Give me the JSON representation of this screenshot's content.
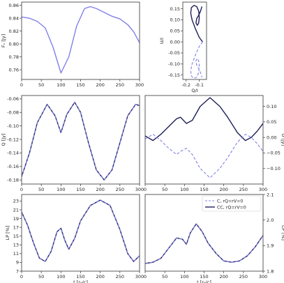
{
  "colors": {
    "light": "#8080ea",
    "dark": "#1e1e5a",
    "axis": "#333333"
  },
  "legend": {
    "entries": [
      {
        "label": "C, rQ=rV=0",
        "style": "dashed",
        "color": "#8080ea"
      },
      {
        "label": "CC, rQ=rV=0",
        "style": "solid",
        "color": "#1e1e5a"
      }
    ]
  },
  "chart_data": [
    {
      "id": "fv",
      "type": "line",
      "ylabel": "Fᵥ [Jy]",
      "xlim": [
        0,
        300
      ],
      "ylim": [
        0.745,
        0.865
      ],
      "xticks": [
        0,
        50,
        100,
        150,
        200,
        250,
        300
      ],
      "yticks": [
        0.76,
        0.78,
        0.8,
        0.82,
        0.84,
        0.86
      ],
      "ytick_labels": [
        "0.76",
        "0.78",
        "0.80",
        "0.82",
        "0.84",
        "0.86"
      ],
      "show_xtick_labels": true,
      "series": [
        {
          "style": "solid",
          "color": "#8080ea",
          "x": [
            0,
            20,
            40,
            60,
            80,
            100,
            120,
            140,
            160,
            175,
            190,
            210,
            230,
            250,
            270,
            285,
            300
          ],
          "y": [
            0.842,
            0.84,
            0.835,
            0.825,
            0.795,
            0.755,
            0.78,
            0.828,
            0.855,
            0.858,
            0.855,
            0.849,
            0.843,
            0.839,
            0.83,
            0.819,
            0.802
          ]
        }
      ]
    },
    {
      "id": "qu",
      "type": "line",
      "xlabel": "Q/I",
      "ylabel": "U/I",
      "xlim": [
        -0.225,
        -0.045
      ],
      "ylim": [
        -0.17,
        0.18
      ],
      "xticks": [
        -0.2,
        -0.1
      ],
      "xtick_labels": [
        "-0.2",
        "-0.1"
      ],
      "yticks": [
        -0.15,
        -0.1,
        -0.05,
        0.0,
        0.05,
        0.1,
        0.15
      ],
      "ytick_labels": [
        "-0.15",
        "-0.10",
        "-0.05",
        "0.00",
        "0.05",
        "0.10",
        "0.15"
      ],
      "show_xtick_labels": true,
      "series": [
        {
          "style": "solid",
          "color": "#1e1e5a",
          "x": [
            -0.075,
            -0.1,
            -0.13,
            -0.155,
            -0.165,
            -0.16,
            -0.14,
            -0.12,
            -0.105,
            -0.1,
            -0.105,
            -0.115,
            -0.125,
            -0.12,
            -0.105,
            -0.09,
            -0.08
          ],
          "y": [
            0.0,
            0.02,
            0.06,
            0.1,
            0.13,
            0.155,
            0.165,
            0.16,
            0.14,
            0.11,
            0.085,
            0.075,
            0.085,
            0.105,
            0.12,
            0.14,
            0.16
          ]
        },
        {
          "style": "dashed",
          "color": "#8080ea",
          "x": [
            -0.075,
            -0.1,
            -0.13,
            -0.155,
            -0.165,
            -0.16,
            -0.14,
            -0.12,
            -0.105,
            -0.1,
            -0.105,
            -0.115,
            -0.125,
            -0.12,
            -0.105,
            -0.09,
            -0.08
          ],
          "y": [
            0.0,
            -0.02,
            -0.06,
            -0.1,
            -0.13,
            -0.155,
            -0.165,
            -0.16,
            -0.14,
            -0.11,
            -0.085,
            -0.075,
            -0.085,
            -0.105,
            -0.12,
            -0.14,
            -0.16
          ]
        }
      ]
    },
    {
      "id": "q",
      "type": "line",
      "ylabel": "Q [Jy]",
      "xlim": [
        0,
        300
      ],
      "ylim": [
        -0.186,
        -0.055
      ],
      "xticks": [
        0,
        50,
        100,
        150,
        200,
        250,
        300
      ],
      "yticks": [
        -0.06,
        -0.08,
        -0.1,
        -0.12,
        -0.14,
        -0.16,
        -0.18
      ],
      "ytick_labels": [
        "-0.06",
        "-0.08",
        "-0.10",
        "-0.12",
        "-0.14",
        "-0.16",
        "-0.18"
      ],
      "show_xtick_labels": true,
      "series": [
        {
          "style": "solid",
          "color": "#1e1e5a",
          "x": [
            0,
            20,
            40,
            65,
            85,
            100,
            115,
            135,
            150,
            170,
            190,
            210,
            230,
            250,
            270,
            290,
            300
          ],
          "y": [
            -0.175,
            -0.14,
            -0.095,
            -0.068,
            -0.085,
            -0.11,
            -0.083,
            -0.065,
            -0.08,
            -0.125,
            -0.165,
            -0.18,
            -0.165,
            -0.125,
            -0.085,
            -0.068,
            -0.07
          ]
        },
        {
          "style": "dashed",
          "color": "#8080ea",
          "x": [
            0,
            20,
            40,
            65,
            85,
            100,
            115,
            135,
            150,
            170,
            190,
            210,
            230,
            250,
            270,
            290,
            300
          ],
          "y": [
            -0.175,
            -0.14,
            -0.095,
            -0.068,
            -0.085,
            -0.11,
            -0.083,
            -0.065,
            -0.08,
            -0.125,
            -0.165,
            -0.18,
            -0.165,
            -0.125,
            -0.085,
            -0.068,
            -0.07
          ]
        }
      ]
    },
    {
      "id": "u",
      "type": "line",
      "ylabel": "U [Jy]",
      "xlim": [
        0,
        300
      ],
      "ylim": [
        -0.15,
        0.135
      ],
      "xticks": [
        0,
        50,
        100,
        150,
        200,
        250,
        300
      ],
      "yticks": [
        0.1,
        0.05,
        0.0,
        -0.05,
        -0.1
      ],
      "ytick_labels": [
        "0.10",
        "0.05",
        "0.00",
        "−0.05",
        "−0.10"
      ],
      "y_axis_side": "right",
      "show_xtick_labels": true,
      "series": [
        {
          "style": "solid",
          "color": "#1e1e5a",
          "x": [
            0,
            20,
            40,
            60,
            80,
            90,
            105,
            120,
            140,
            165,
            190,
            210,
            235,
            255,
            270,
            285,
            300
          ],
          "y": [
            0.005,
            -0.01,
            0.01,
            0.035,
            0.06,
            0.065,
            0.045,
            0.055,
            0.1,
            0.128,
            0.1,
            0.065,
            0.015,
            -0.01,
            0.0,
            0.02,
            0.045
          ]
        },
        {
          "style": "dashed",
          "color": "#8080ea",
          "x": [
            0,
            20,
            40,
            60,
            80,
            90,
            105,
            120,
            140,
            165,
            190,
            210,
            235,
            255,
            270,
            285,
            300
          ],
          "y": [
            -0.005,
            0.01,
            -0.01,
            -0.035,
            -0.055,
            -0.045,
            -0.035,
            -0.055,
            -0.1,
            -0.13,
            -0.1,
            -0.065,
            -0.015,
            0.01,
            0.0,
            -0.02,
            -0.045
          ]
        }
      ]
    },
    {
      "id": "lp",
      "type": "line",
      "xlabel": "t [r₉/c]",
      "ylabel": "LP [%]",
      "xlim": [
        0,
        300
      ],
      "ylim": [
        7,
        24.5
      ],
      "xticks": [
        0,
        50,
        100,
        150,
        200,
        250,
        300
      ],
      "yticks": [
        7,
        9,
        11,
        13,
        15,
        17,
        19,
        21,
        23
      ],
      "ytick_labels": [
        "7",
        "9",
        "11",
        "13",
        "15",
        "17",
        "19",
        "21",
        "23"
      ],
      "show_xtick_labels": true,
      "series": [
        {
          "style": "solid",
          "color": "#1e1e5a",
          "x": [
            0,
            15,
            30,
            45,
            60,
            75,
            90,
            100,
            110,
            120,
            135,
            150,
            175,
            200,
            225,
            250,
            270,
            285,
            300
          ],
          "y": [
            20.5,
            17.5,
            13.5,
            10,
            9.2,
            11.5,
            16,
            16.8,
            14,
            12,
            14.5,
            18.5,
            22,
            23.2,
            22,
            16.5,
            11,
            9.2,
            10.5
          ]
        },
        {
          "style": "dashed",
          "color": "#8080ea",
          "x": [
            0,
            15,
            30,
            45,
            60,
            75,
            90,
            100,
            110,
            120,
            135,
            150,
            175,
            200,
            225,
            250,
            270,
            285,
            300
          ],
          "y": [
            20.5,
            17.5,
            13.5,
            10,
            9.2,
            11.5,
            16,
            16.8,
            14,
            12,
            14.5,
            18.5,
            22,
            23.2,
            22,
            16.5,
            11,
            9.2,
            10.5
          ]
        }
      ]
    },
    {
      "id": "cp",
      "type": "line",
      "xlabel": "t [r₉/c]",
      "ylabel": "CP [%]",
      "xlim": [
        0,
        300
      ],
      "ylim": [
        1.8,
        2.1
      ],
      "xticks": [
        0,
        50,
        100,
        150,
        200,
        250,
        300
      ],
      "yticks": [
        1.8,
        1.9,
        2.0,
        2.1
      ],
      "ytick_labels": [
        "1.8",
        "1.9",
        "2.0",
        "2.1"
      ],
      "y_axis_side": "right",
      "show_xtick_labels": true,
      "series": [
        {
          "style": "solid",
          "color": "#1e1e5a",
          "x": [
            0,
            20,
            40,
            60,
            80,
            95,
            105,
            115,
            130,
            145,
            160,
            180,
            200,
            220,
            240,
            260,
            280,
            300
          ],
          "y": [
            1.83,
            1.835,
            1.85,
            1.89,
            1.93,
            1.925,
            1.905,
            1.95,
            1.985,
            1.955,
            1.91,
            1.87,
            1.84,
            1.835,
            1.84,
            1.86,
            1.895,
            1.94
          ]
        },
        {
          "style": "dashed",
          "color": "#8080ea",
          "x": [
            0,
            20,
            40,
            60,
            80,
            95,
            105,
            115,
            130,
            145,
            160,
            180,
            200,
            220,
            240,
            260,
            280,
            300
          ],
          "y": [
            1.83,
            1.835,
            1.85,
            1.89,
            1.93,
            1.925,
            1.905,
            1.95,
            1.985,
            1.955,
            1.91,
            1.87,
            1.84,
            1.835,
            1.84,
            1.86,
            1.895,
            1.94
          ]
        }
      ]
    }
  ]
}
